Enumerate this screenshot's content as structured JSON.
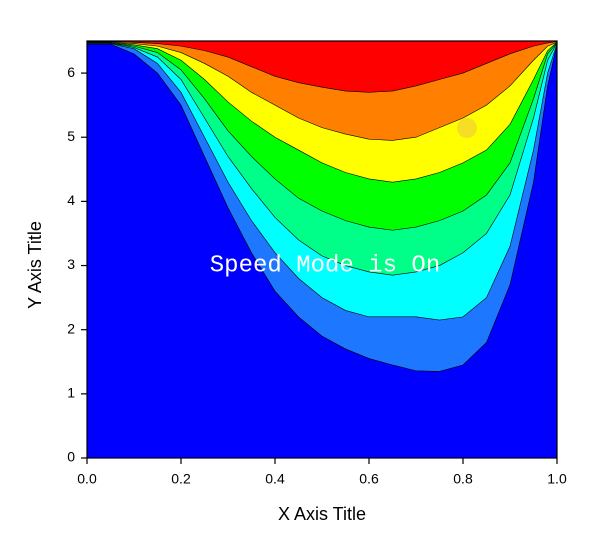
{
  "chart_data": {
    "type": "contour",
    "x_label": "X Axis Title",
    "y_label": "Y Axis Title",
    "overlay_text": "Speed Mode is On",
    "xlim": [
      0,
      1
    ],
    "ylim": [
      0,
      6.5
    ],
    "xticks": [
      {
        "value": 0,
        "label": "0.0"
      },
      0.2,
      0.4,
      0.6,
      0.8,
      {
        "value": 1,
        "label": "1.0"
      }
    ],
    "yticks": [
      0,
      1,
      2,
      3,
      4,
      5,
      6
    ],
    "base_color": "#0000ff",
    "x": [
      0.05,
      0.1,
      0.15,
      0.2,
      0.25,
      0.3,
      0.35,
      0.4,
      0.45,
      0.5,
      0.55,
      0.6,
      0.65,
      0.7,
      0.75,
      0.8,
      0.85,
      0.9,
      0.95,
      0.98,
      1.0
    ],
    "boundaries": [
      {
        "color": "#1e78ff",
        "values": [
          6.45,
          6.3,
          6.0,
          5.5,
          4.7,
          3.9,
          3.2,
          2.6,
          2.2,
          1.9,
          1.7,
          1.55,
          1.45,
          1.36,
          1.35,
          1.45,
          1.8,
          2.7,
          4.3,
          5.8,
          6.45
        ]
      },
      {
        "color": "#00ffff",
        "values": [
          6.46,
          6.38,
          6.15,
          5.7,
          5.0,
          4.3,
          3.7,
          3.2,
          2.8,
          2.5,
          2.3,
          2.2,
          2.2,
          2.2,
          2.15,
          2.2,
          2.5,
          3.3,
          4.8,
          6.0,
          6.46
        ]
      },
      {
        "color": "#00ff88",
        "values": [
          6.47,
          6.4,
          6.25,
          5.9,
          5.3,
          4.7,
          4.2,
          3.75,
          3.4,
          3.15,
          3.0,
          2.9,
          2.85,
          2.9,
          3.0,
          3.2,
          3.5,
          4.1,
          5.3,
          6.2,
          6.47
        ]
      },
      {
        "color": "#00ff00",
        "values": [
          6.47,
          6.42,
          6.32,
          6.05,
          5.6,
          5.1,
          4.7,
          4.35,
          4.05,
          3.85,
          3.7,
          3.6,
          3.55,
          3.6,
          3.7,
          3.85,
          4.1,
          4.6,
          5.6,
          6.3,
          6.47
        ]
      },
      {
        "color": "#ffff00",
        "values": [
          6.48,
          6.44,
          6.38,
          6.2,
          5.9,
          5.55,
          5.25,
          5.0,
          4.8,
          4.6,
          4.45,
          4.35,
          4.3,
          4.35,
          4.45,
          4.6,
          4.8,
          5.2,
          5.9,
          6.35,
          6.48
        ]
      },
      {
        "color": "#ff8000",
        "values": [
          6.48,
          6.46,
          6.42,
          6.32,
          6.15,
          5.95,
          5.7,
          5.5,
          5.3,
          5.15,
          5.05,
          4.97,
          4.95,
          5.0,
          5.15,
          5.3,
          5.5,
          5.8,
          6.2,
          6.42,
          6.48
        ]
      },
      {
        "color": "#ff0000",
        "values": [
          6.49,
          6.48,
          6.46,
          6.42,
          6.35,
          6.25,
          6.1,
          5.95,
          5.85,
          5.78,
          5.72,
          5.7,
          5.72,
          5.8,
          5.9,
          6.0,
          6.15,
          6.3,
          6.42,
          6.47,
          6.49
        ]
      }
    ]
  }
}
